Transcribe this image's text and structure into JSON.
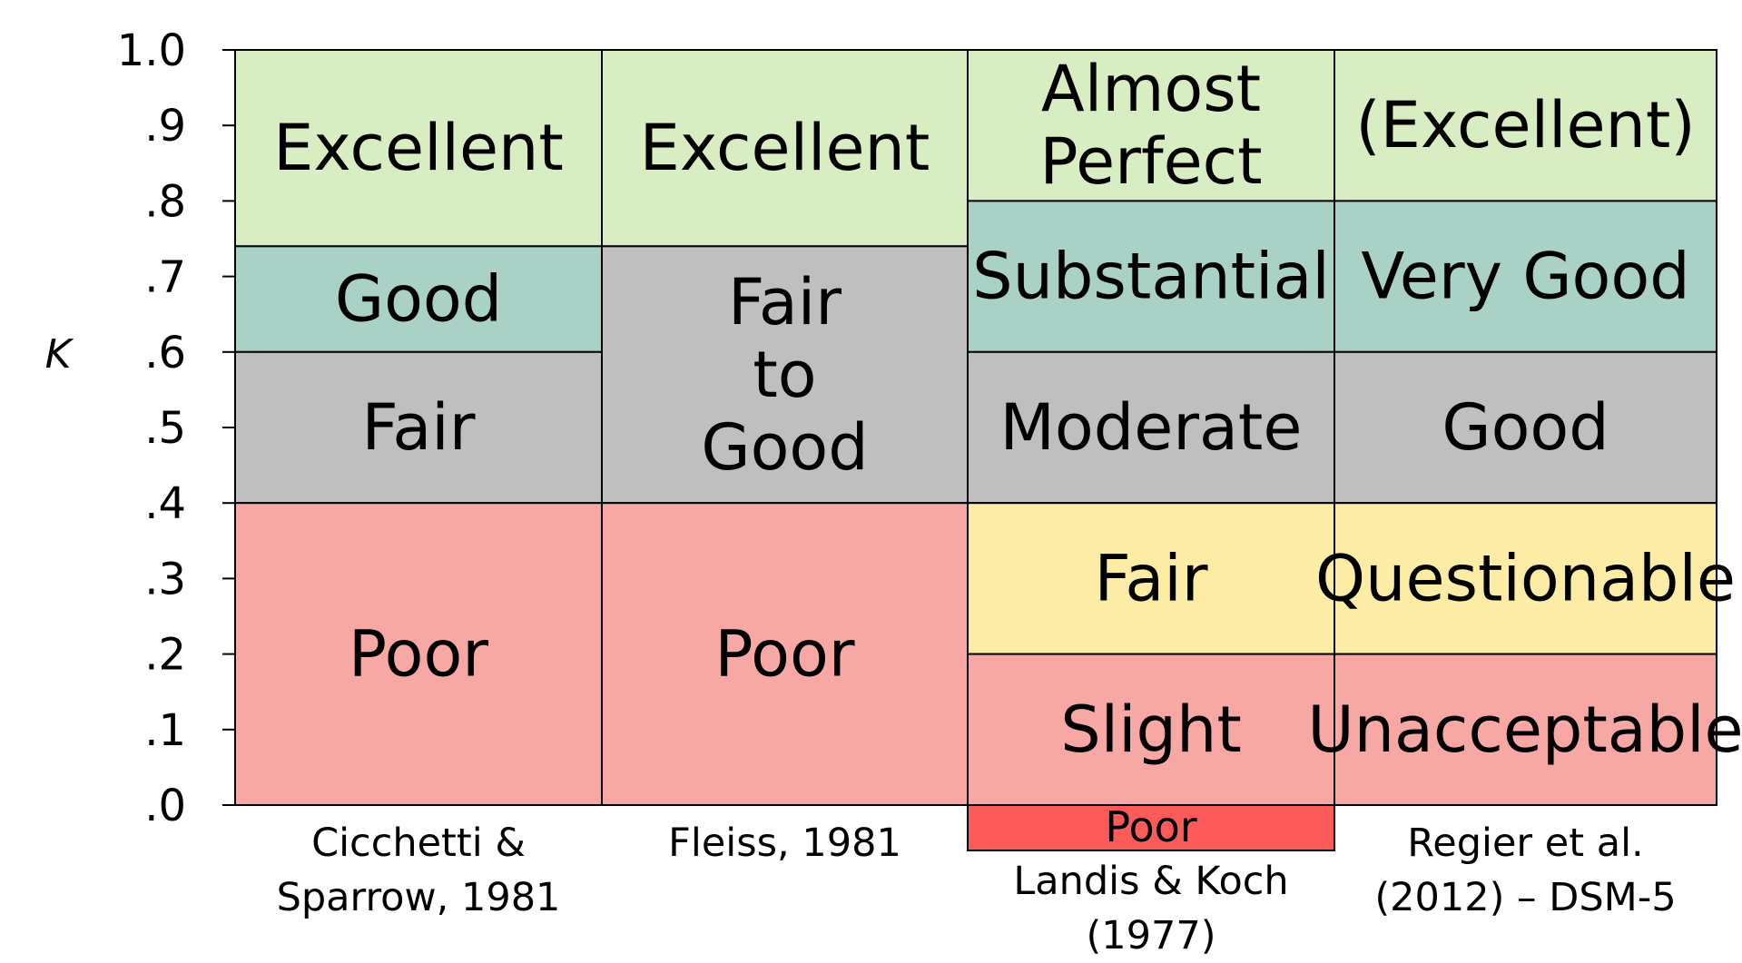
{
  "chart_data": {
    "type": "table",
    "ylabel": "K",
    "ylim": [
      0,
      1.0
    ],
    "ticks": [
      {
        "value": 1.0,
        "label": "1.0"
      },
      {
        "value": 0.9,
        "label": ".9"
      },
      {
        "value": 0.8,
        "label": ".8"
      },
      {
        "value": 0.7,
        "label": ".7"
      },
      {
        "value": 0.6,
        "label": ".6"
      },
      {
        "value": 0.5,
        "label": ".5"
      },
      {
        "value": 0.4,
        "label": ".4"
      },
      {
        "value": 0.3,
        "label": ".3"
      },
      {
        "value": 0.2,
        "label": ".2"
      },
      {
        "value": 0.1,
        "label": ".1"
      },
      {
        "value": 0.0,
        "label": ".0"
      }
    ],
    "columns": [
      {
        "source_lines": [
          "Cicchetti &",
          "Sparrow, 1981"
        ],
        "bands": [
          {
            "from": 0.74,
            "to": 1.0,
            "label_lines": [
              "Excellent"
            ],
            "color": "#d8edc2"
          },
          {
            "from": 0.6,
            "to": 0.74,
            "label_lines": [
              "Good"
            ],
            "color": "#a9d1c6"
          },
          {
            "from": 0.4,
            "to": 0.6,
            "label_lines": [
              "Fair"
            ],
            "color": "#bfbfbf"
          },
          {
            "from": 0.0,
            "to": 0.4,
            "label_lines": [
              "Poor"
            ],
            "color": "#f7a7a4"
          }
        ]
      },
      {
        "source_lines": [
          "Fleiss, 1981"
        ],
        "bands": [
          {
            "from": 0.74,
            "to": 1.0,
            "label_lines": [
              "Excellent"
            ],
            "color": "#d8edc2"
          },
          {
            "from": 0.4,
            "to": 0.74,
            "label_lines": [
              "Fair",
              "to",
              "Good"
            ],
            "color": "#bfbfbf"
          },
          {
            "from": 0.0,
            "to": 0.4,
            "label_lines": [
              "Poor"
            ],
            "color": "#f7a7a4"
          }
        ]
      },
      {
        "source_lines": [
          "Landis & Koch",
          "(1977)"
        ],
        "bands": [
          {
            "from": 0.8,
            "to": 1.0,
            "label_lines": [
              "Almost",
              "Perfect"
            ],
            "color": "#d8edc2"
          },
          {
            "from": 0.6,
            "to": 0.8,
            "label_lines": [
              "Substantial"
            ],
            "color": "#a9d1c6"
          },
          {
            "from": 0.4,
            "to": 0.6,
            "label_lines": [
              "Moderate"
            ],
            "color": "#bfbfbf"
          },
          {
            "from": 0.2,
            "to": 0.4,
            "label_lines": [
              "Fair"
            ],
            "color": "#fdeca6"
          },
          {
            "from": 0.0,
            "to": 0.2,
            "label_lines": [
              "Slight"
            ],
            "color": "#f7a7a4"
          }
        ],
        "below_zero": {
          "label": "Poor",
          "color": "#fd5a5a"
        }
      },
      {
        "source_lines": [
          "Regier et al.",
          "(2012) – DSM-5"
        ],
        "bands": [
          {
            "from": 0.8,
            "to": 1.0,
            "label_lines": [
              "(Excellent)"
            ],
            "color": "#d8edc2"
          },
          {
            "from": 0.6,
            "to": 0.8,
            "label_lines": [
              "Very Good"
            ],
            "color": "#a9d1c6"
          },
          {
            "from": 0.4,
            "to": 0.6,
            "label_lines": [
              "Good"
            ],
            "color": "#bfbfbf"
          },
          {
            "from": 0.2,
            "to": 0.4,
            "label_lines": [
              "Questionable"
            ],
            "color": "#fdeca6"
          },
          {
            "from": 0.0,
            "to": 0.2,
            "label_lines": [
              "Unacceptable"
            ],
            "color": "#f7a7a4"
          }
        ]
      }
    ]
  }
}
